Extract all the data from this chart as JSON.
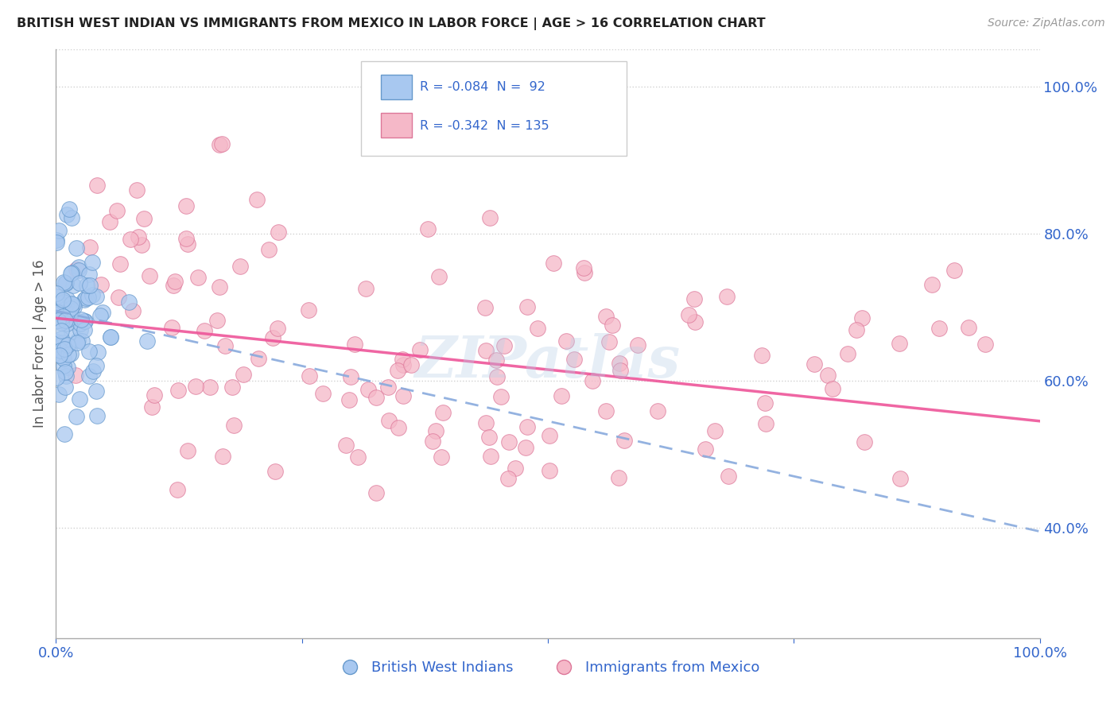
{
  "title": "BRITISH WEST INDIAN VS IMMIGRANTS FROM MEXICO IN LABOR FORCE | AGE > 16 CORRELATION CHART",
  "source": "Source: ZipAtlas.com",
  "ylabel": "In Labor Force | Age > 16",
  "legend_line1": "R = -0.084  N =  92",
  "legend_line2": "R = -0.342  N = 135",
  "blue_color": "#a8c8f0",
  "blue_edge": "#6699cc",
  "pink_color": "#f5b8c8",
  "pink_edge": "#dd7799",
  "blue_line_color": "#88aadd",
  "pink_line_color": "#ee5599",
  "right_yticks": [
    0.4,
    0.6,
    0.8,
    1.0
  ],
  "xlim": [
    0.0,
    1.0
  ],
  "ylim": [
    0.25,
    1.05
  ],
  "blue_trend_y0": 0.695,
  "blue_trend_y1": 0.395,
  "pink_trend_y0": 0.685,
  "pink_trend_y1": 0.545,
  "watermark_text": "ZIPatlas",
  "bg_color": "#ffffff",
  "grid_color": "#cccccc"
}
